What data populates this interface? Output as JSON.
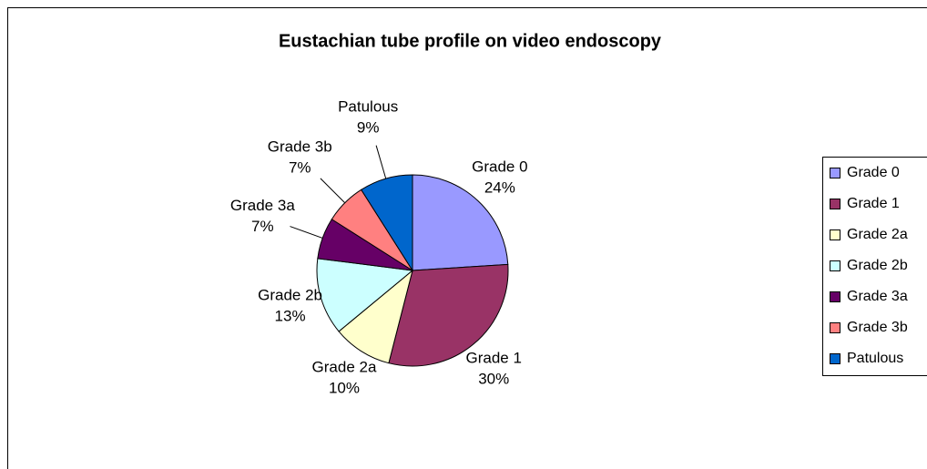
{
  "chart_data": {
    "type": "pie",
    "title": "Eustachian tube profile on video endoscopy",
    "categories": [
      "Grade 0",
      "Grade 1",
      "Grade 2a",
      "Grade 2b",
      "Grade 3a",
      "Grade 3b",
      "Patulous"
    ],
    "values": [
      24,
      30,
      10,
      13,
      7,
      7,
      9
    ],
    "value_labels": [
      "24%",
      "30%",
      "10%",
      "13%",
      "7%",
      "7%",
      "9%"
    ],
    "colors": [
      "#9999ff",
      "#993366",
      "#ffffcc",
      "#ccffff",
      "#660066",
      "#ff8080",
      "#0066cc"
    ],
    "legend": "right"
  }
}
